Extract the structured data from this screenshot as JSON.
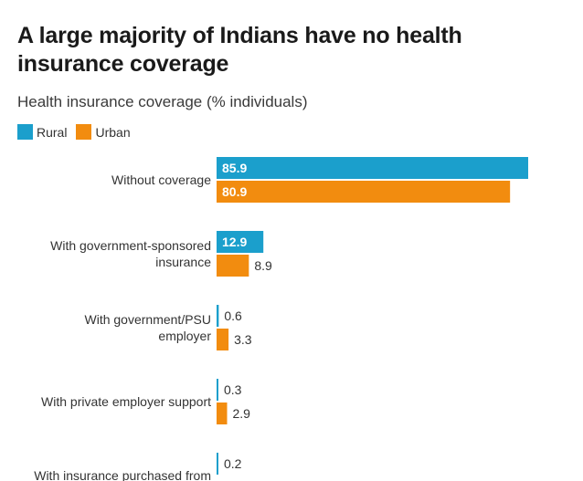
{
  "header": {
    "title": "A large majority of Indians have no health insurance coverage",
    "subtitle": "Health insurance coverage (% individuals)"
  },
  "legend": [
    {
      "label": "Rural",
      "color": "#1b9fcc"
    },
    {
      "label": "Urban",
      "color": "#f28c0f"
    }
  ],
  "chart_data": {
    "type": "bar",
    "orientation": "horizontal",
    "categories": [
      [
        "Without coverage"
      ],
      [
        "With government-sponsored",
        "insurance"
      ],
      [
        "With government/PSU",
        "employer"
      ],
      [
        "With private employer support"
      ],
      [
        "With insurance purchased from"
      ]
    ],
    "series": [
      {
        "name": "Rural",
        "color": "#1b9fcc",
        "values": [
          85.9,
          12.9,
          0.6,
          0.3,
          0.2
        ]
      },
      {
        "name": "Urban",
        "color": "#f28c0f",
        "values": [
          80.9,
          8.9,
          3.3,
          2.9,
          null
        ]
      }
    ],
    "value_labels": true,
    "grid": false,
    "legend_position": "top-left"
  }
}
